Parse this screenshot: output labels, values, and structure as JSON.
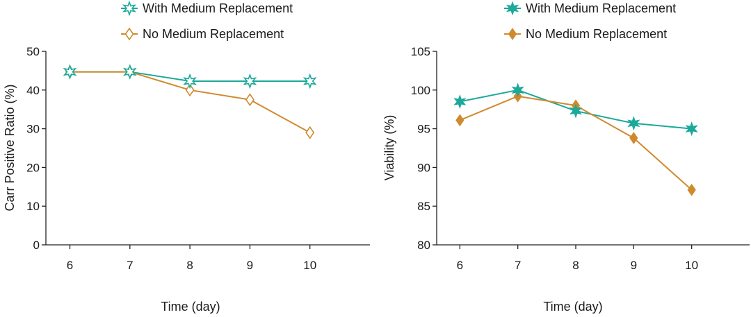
{
  "colors": {
    "with_medium": "#1aa99a",
    "no_medium": "#d08a2e",
    "axis": "#222222"
  },
  "chart_data": [
    {
      "type": "line",
      "id": "left",
      "xlabel": "Time (day)",
      "ylabel": "Carr Positive Ratio (%)",
      "categories": [
        "6",
        "7",
        "8",
        "9",
        "10"
      ],
      "x": [
        6,
        7,
        8,
        9,
        10
      ],
      "xlim": [
        5.6,
        11.0
      ],
      "ylim": [
        0,
        50
      ],
      "yticks": [
        "0",
        "10",
        "20",
        "30",
        "40",
        "50"
      ],
      "ytick_values": [
        0,
        10,
        20,
        30,
        40,
        50
      ],
      "legend_position": "top",
      "series": [
        {
          "name": "With Medium Replacement",
          "marker": "star-hollow",
          "color_key": "with_medium",
          "values": [
            44.7,
            44.7,
            42.3,
            42.3,
            42.3
          ]
        },
        {
          "name": "No Medium Replacement",
          "marker": "diamond-hollow",
          "color_key": "no_medium",
          "values": [
            44.7,
            44.7,
            40.0,
            37.5,
            29.0
          ]
        }
      ]
    },
    {
      "type": "line",
      "id": "right",
      "xlabel": "Time (day)",
      "ylabel": "Viability (%)",
      "categories": [
        "6",
        "7",
        "8",
        "9",
        "10"
      ],
      "x": [
        6,
        7,
        8,
        9,
        10
      ],
      "xlim": [
        5.6,
        11.0
      ],
      "ylim": [
        80,
        105
      ],
      "yticks": [
        "80",
        "85",
        "90",
        "95",
        "100",
        "105"
      ],
      "ytick_values": [
        80,
        85,
        90,
        95,
        100,
        105
      ],
      "legend_position": "top",
      "series": [
        {
          "name": "With Medium Replacement",
          "marker": "star-filled",
          "color_key": "with_medium",
          "values": [
            98.5,
            100.0,
            97.3,
            95.7,
            95.0
          ]
        },
        {
          "name": "No Medium Replacement",
          "marker": "diamond-filled",
          "color_key": "no_medium",
          "values": [
            96.1,
            99.2,
            98.0,
            93.8,
            87.1
          ]
        }
      ]
    }
  ]
}
